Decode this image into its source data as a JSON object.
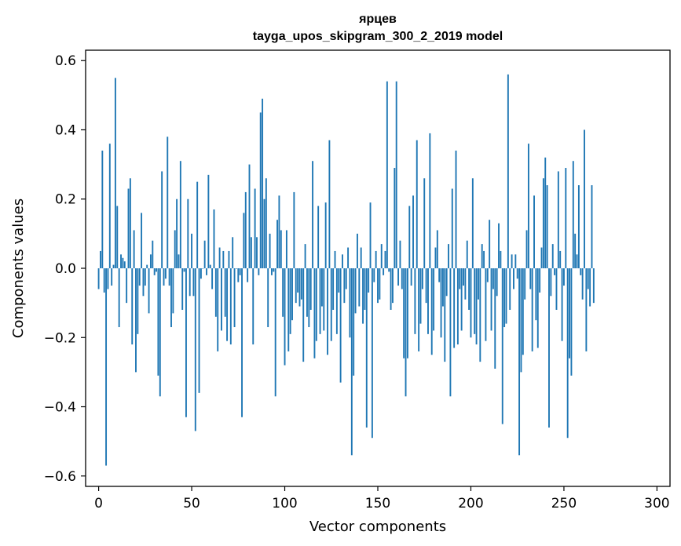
{
  "chart_data": {
    "type": "bar",
    "title": "ярцев",
    "subtitle": "tayga_upos_skipgram_300_2_2019 model",
    "xlabel": "Vector components",
    "ylabel": "Components values",
    "xlim": [
      -7,
      307
    ],
    "ylim": [
      -0.63,
      0.63
    ],
    "x_ticks": [
      0,
      50,
      100,
      150,
      200,
      250,
      300
    ],
    "x_tick_labels": [
      "0",
      "50",
      "100",
      "150",
      "200",
      "250",
      "300"
    ],
    "y_ticks": [
      -0.6,
      -0.4,
      -0.2,
      0.0,
      0.2,
      0.4,
      0.6
    ],
    "y_tick_labels": [
      "−0.6",
      "−0.4",
      "−0.2",
      "0.0",
      "0.2",
      "0.4",
      "0.6"
    ],
    "series": [
      {
        "name": "components",
        "color": "#1f77b4",
        "values": [
          -0.06,
          0.05,
          0.34,
          -0.07,
          -0.57,
          -0.06,
          0.36,
          -0.05,
          0.01,
          0.55,
          0.18,
          -0.17,
          0.04,
          0.03,
          0.02,
          -0.1,
          0.23,
          0.26,
          -0.22,
          0.11,
          -0.3,
          -0.19,
          -0.05,
          0.16,
          -0.08,
          -0.05,
          0.01,
          -0.13,
          0.04,
          0.08,
          -0.02,
          -0.01,
          -0.31,
          -0.37,
          0.28,
          -0.05,
          -0.03,
          0.38,
          -0.05,
          -0.17,
          -0.13,
          0.11,
          0.2,
          0.04,
          0.31,
          -0.12,
          -0.01,
          -0.43,
          0.2,
          -0.08,
          0.1,
          -0.08,
          -0.47,
          0.25,
          -0.36,
          -0.03,
          0.0,
          0.08,
          -0.02,
          0.27,
          0.01,
          -0.06,
          0.17,
          -0.14,
          -0.24,
          0.06,
          -0.18,
          0.05,
          -0.14,
          -0.21,
          0.05,
          -0.22,
          0.09,
          -0.17,
          0.0,
          -0.04,
          -0.02,
          -0.43,
          0.16,
          0.22,
          -0.04,
          0.3,
          0.09,
          -0.22,
          0.23,
          0.09,
          -0.02,
          0.45,
          0.49,
          0.2,
          0.26,
          -0.17,
          0.1,
          -0.02,
          -0.01,
          -0.37,
          0.14,
          0.21,
          0.11,
          -0.14,
          -0.28,
          0.11,
          -0.24,
          -0.19,
          -0.15,
          0.22,
          -0.1,
          -0.07,
          -0.11,
          -0.09,
          -0.27,
          0.07,
          -0.14,
          -0.17,
          -0.12,
          0.31,
          -0.26,
          -0.21,
          0.18,
          -0.19,
          -0.11,
          -0.18,
          0.19,
          -0.25,
          0.37,
          -0.21,
          -0.12,
          0.05,
          -0.19,
          -0.07,
          -0.33,
          0.04,
          -0.1,
          -0.06,
          0.06,
          -0.2,
          -0.54,
          -0.31,
          -0.13,
          0.1,
          -0.11,
          0.06,
          -0.16,
          -0.12,
          -0.46,
          -0.07,
          0.19,
          -0.49,
          -0.04,
          0.05,
          -0.1,
          -0.09,
          0.07,
          -0.02,
          0.05,
          0.54,
          -0.01,
          -0.12,
          -0.1,
          0.29,
          0.54,
          -0.05,
          0.08,
          -0.06,
          -0.26,
          -0.37,
          -0.26,
          0.18,
          -0.05,
          0.21,
          -0.19,
          0.37,
          -0.24,
          -0.16,
          -0.06,
          0.26,
          -0.1,
          -0.19,
          0.39,
          -0.25,
          -0.18,
          0.06,
          0.11,
          -0.04,
          -0.2,
          -0.11,
          -0.27,
          -0.08,
          0.07,
          -0.37,
          0.23,
          -0.23,
          0.34,
          -0.22,
          -0.06,
          -0.18,
          -0.05,
          -0.09,
          0.08,
          -0.12,
          -0.2,
          0.26,
          -0.19,
          -0.22,
          -0.09,
          -0.27,
          0.07,
          0.05,
          -0.21,
          -0.04,
          0.14,
          -0.18,
          -0.06,
          -0.29,
          -0.08,
          0.13,
          0.05,
          -0.45,
          -0.17,
          -0.16,
          0.56,
          -0.12,
          0.04,
          -0.06,
          0.04,
          -0.03,
          -0.54,
          -0.3,
          -0.25,
          -0.09,
          0.11,
          0.36,
          -0.06,
          -0.24,
          0.21,
          -0.15,
          -0.23,
          -0.07,
          0.06,
          0.26,
          0.32,
          0.24,
          -0.46,
          -0.08,
          0.07,
          -0.02,
          -0.12,
          0.28,
          0.05,
          -0.21,
          -0.05,
          0.29,
          -0.49,
          -0.26,
          -0.31,
          0.31,
          0.1,
          0.04,
          0.24,
          -0.02,
          -0.09,
          0.4,
          -0.24,
          -0.06,
          -0.11,
          0.24,
          -0.1
        ]
      }
    ]
  }
}
